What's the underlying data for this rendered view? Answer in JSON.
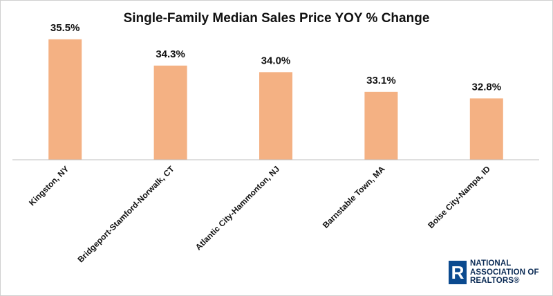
{
  "chart_data": {
    "type": "bar",
    "title": "Single-Family Median Sales Price YOY % Change",
    "categories": [
      "Kingston, NY",
      "Bridgeport-Stamford-Norwalk, CT",
      "Atlantic City-Hammonton, NJ",
      "Barnstable Town, MA",
      "Boise City-Nampa, ID"
    ],
    "values": [
      35.5,
      34.3,
      34.0,
      33.1,
      32.8
    ],
    "data_labels": [
      "35.5%",
      "34.3%",
      "34.0%",
      "33.1%",
      "32.8%"
    ],
    "ylim": [
      30.0,
      36.0
    ],
    "grid": false,
    "bar_color": "#F4B183"
  },
  "logo": {
    "mark": "R",
    "lines": [
      "NATIONAL",
      "ASSOCIATION OF",
      "REALTORS®"
    ]
  }
}
